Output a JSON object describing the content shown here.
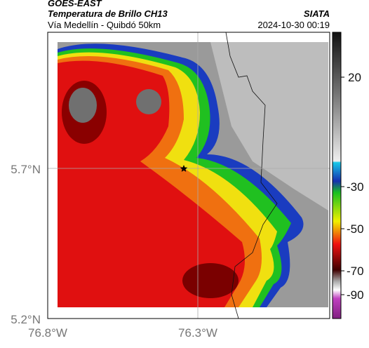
{
  "header": {
    "title": "GOES-EAST",
    "subtitle": "Temperatura de Brillo CH13",
    "route": "Vía Medellín - Quibdó 50km",
    "source": "SIATA",
    "datetime": "2024-10-30 00:19"
  },
  "axes": {
    "x_ticks": [
      "76.8°W",
      "76.3°W"
    ],
    "y_ticks": [
      "5.7°N",
      "5.2°N"
    ]
  },
  "colorbar": {
    "ticks": [
      "20",
      "-30",
      "-50",
      "-70",
      "-90"
    ]
  }
}
